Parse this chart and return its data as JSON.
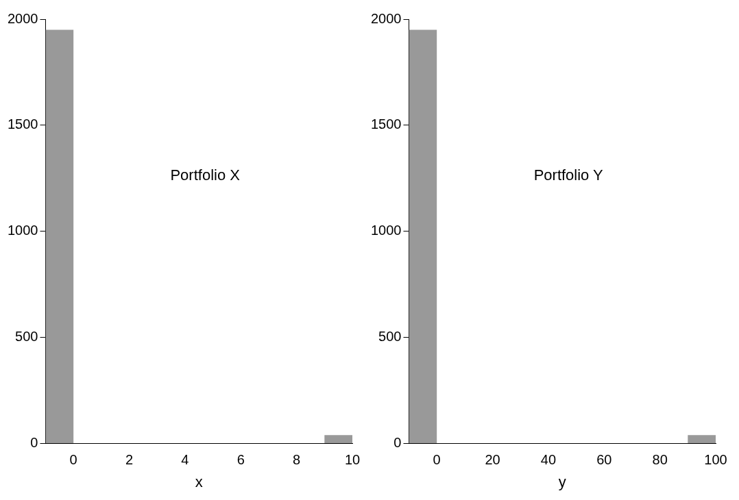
{
  "chart_data": [
    {
      "type": "histogram",
      "xlabel": "x",
      "bins": [
        -1,
        0,
        9,
        10
      ],
      "values": [
        1950,
        0,
        40
      ],
      "color": "#999999",
      "xlim": [
        -1,
        10
      ],
      "xticks": [
        0,
        2,
        4,
        6,
        8,
        10
      ],
      "ylim": [
        0,
        2000
      ],
      "yticks": [
        0,
        500,
        1000,
        1500,
        2000
      ],
      "grid": false,
      "legend": false,
      "annotations": [
        "Portfolio X"
      ]
    },
    {
      "type": "histogram",
      "xlabel": "y",
      "bins": [
        -10,
        0,
        90,
        100
      ],
      "values": [
        1950,
        0,
        40
      ],
      "color": "#999999",
      "xlim": [
        -10,
        100
      ],
      "xticks": [
        0,
        20,
        40,
        60,
        80,
        100
      ],
      "ylim": [
        0,
        2000
      ],
      "yticks": [
        0,
        500,
        1000,
        1500,
        2000
      ],
      "grid": false,
      "legend": false,
      "annotations": [
        "Portfolio Y"
      ]
    }
  ]
}
